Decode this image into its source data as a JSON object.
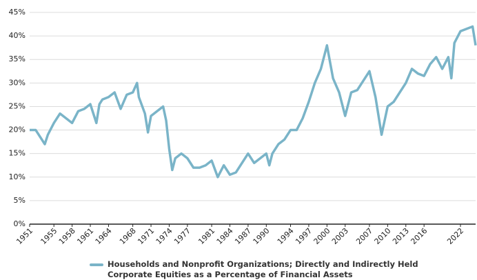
{
  "chart_data": {
    "type": "line",
    "x": [
      1951,
      1952,
      1953,
      1953.5,
      1954,
      1955,
      1956,
      1957,
      1958,
      1959,
      1960,
      1961,
      1962,
      1962.5,
      1963,
      1964,
      1965,
      1966,
      1967,
      1968,
      1968.7,
      1969,
      1970,
      1970.5,
      1971,
      1972,
      1973,
      1973.5,
      1974,
      1974.5,
      1975,
      1976,
      1977,
      1978,
      1979,
      1980,
      1981,
      1982,
      1983,
      1984,
      1985,
      1986,
      1987,
      1988,
      1989,
      1990,
      1990.5,
      1991,
      1992,
      1993,
      1994,
      1995,
      1996,
      1997,
      1998,
      1999,
      2000,
      2001,
      2002,
      2003,
      2004,
      2005,
      2006,
      2007,
      2008,
      2009,
      2010,
      2011,
      2012,
      2013,
      2014,
      2015,
      2016,
      2017,
      2018,
      2019,
      2020,
      2020.5,
      2021,
      2022,
      2023,
      2024,
      2024.5
    ],
    "series": [
      {
        "name": "Households and Nonprofit Organizations; Directly and Indirectly Held Corporate Equities as a Percentage of Financial Assets",
        "color": "#7ab4c8",
        "values": [
          20,
          20,
          18,
          17,
          19,
          21.5,
          23.5,
          22.5,
          21.5,
          24,
          24.5,
          25.5,
          21.5,
          25.5,
          26.5,
          27,
          28,
          24.5,
          27.5,
          28,
          30,
          27,
          23.5,
          19.5,
          23,
          24,
          25,
          22,
          16,
          11.5,
          14,
          15,
          14,
          12,
          12,
          12.5,
          13.5,
          10,
          12.5,
          10.5,
          11,
          13,
          15,
          13,
          14,
          15,
          12.5,
          15,
          17,
          18,
          20,
          20,
          22.5,
          26,
          30,
          33,
          38,
          31,
          28,
          23,
          28,
          28.5,
          30.5,
          32.5,
          27,
          19,
          25,
          26,
          28,
          30,
          33,
          32,
          31.5,
          34,
          35.5,
          33,
          35.5,
          31,
          38.5,
          41,
          41.5,
          42,
          38
        ]
      }
    ],
    "xlim": [
      1951,
      2024.5
    ],
    "xticks": [
      1951,
      1955,
      1958,
      1961,
      1964,
      1968,
      1971,
      1974,
      1977,
      1981,
      1984,
      1987,
      1990,
      1994,
      1997,
      2000,
      2003,
      2007,
      2010,
      2013,
      2016,
      2022
    ],
    "ylim": [
      0,
      45
    ],
    "yticks": [
      {
        "value": 0,
        "label": "0%"
      },
      {
        "value": 5,
        "label": "5%"
      },
      {
        "value": 10,
        "label": "10%"
      },
      {
        "value": 15,
        "label": "15%"
      },
      {
        "value": 20,
        "label": "20%"
      },
      {
        "value": 25,
        "label": "25%"
      },
      {
        "value": 30,
        "label": "30%"
      },
      {
        "value": 35,
        "label": "35%"
      },
      {
        "value": 40,
        "label": "40%"
      },
      {
        "value": 45,
        "label": "45%"
      }
    ],
    "grid": true
  }
}
